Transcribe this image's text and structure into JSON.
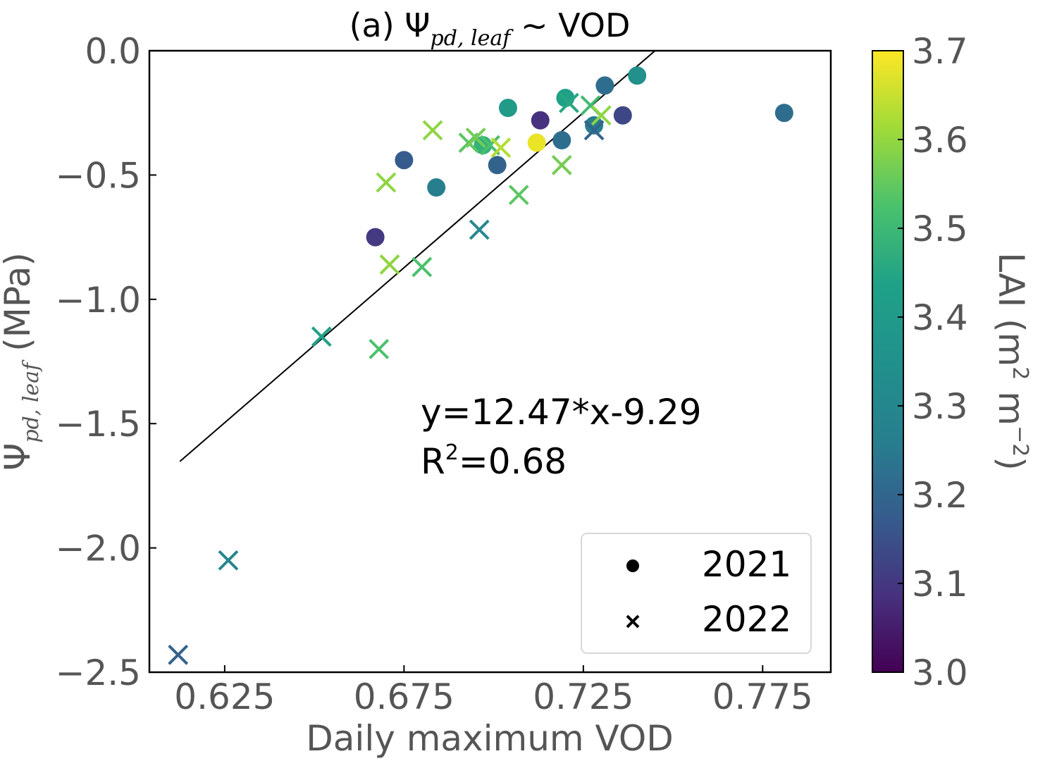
{
  "chart_data": {
    "type": "scatter",
    "title": "(a) Ψ",
    "title_subscript": "pd, leaf",
    "title_suffix": " ~ VOD",
    "xlabel": "Daily maximum VOD",
    "ylabel_prefix": "Ψ",
    "ylabel_subscript": "pd, leaf",
    "ylabel_suffix": " (MPa)",
    "xlim": [
      0.604,
      0.794
    ],
    "ylim": [
      -2.5,
      0.0
    ],
    "x_ticks": [
      0.625,
      0.675,
      0.725,
      0.775
    ],
    "x_tick_labels": [
      "0.625",
      "0.675",
      "0.725",
      "0.775"
    ],
    "y_ticks": [
      0.0,
      -0.5,
      -1.0,
      -1.5,
      -2.0,
      -2.5
    ],
    "y_tick_labels": [
      "0.0",
      "−0.5",
      "−1.0",
      "−1.5",
      "−2.0",
      "−2.5"
    ],
    "grid": false,
    "colorbar": {
      "label": "LAI (m",
      "label_exp1": "2",
      "label_mid": " m",
      "label_exp2": "−2",
      "label_end": ")",
      "colormap": "viridis",
      "range": [
        3.0,
        3.7
      ],
      "ticks": [
        "3.0",
        "3.1",
        "3.2",
        "3.3",
        "3.4",
        "3.5",
        "3.6",
        "3.7"
      ]
    },
    "fit": {
      "slope": 12.47,
      "intercept": -9.29,
      "x_range": [
        0.6125,
        0.745
      ],
      "equation_text": "y=12.47*x-9.29",
      "r2_prefix": "R",
      "r2_exp": "2",
      "r2_suffix": "=0.68"
    },
    "legend": {
      "placement": "lower right",
      "entries": [
        {
          "label": "2021",
          "marker": "circle"
        },
        {
          "label": "2022",
          "marker": "x"
        }
      ]
    },
    "series": [
      {
        "name": "2021",
        "marker": "circle",
        "points": [
          {
            "x": 0.781,
            "y": -0.25,
            "lai": 3.25
          },
          {
            "x": 0.74,
            "y": -0.1,
            "lai": 3.35
          },
          {
            "x": 0.731,
            "y": -0.14,
            "lai": 3.25
          },
          {
            "x": 0.736,
            "y": -0.26,
            "lai": 3.15
          },
          {
            "x": 0.72,
            "y": -0.19,
            "lai": 3.4
          },
          {
            "x": 0.728,
            "y": -0.3,
            "lai": 3.3
          },
          {
            "x": 0.719,
            "y": -0.36,
            "lai": 3.25
          },
          {
            "x": 0.713,
            "y": -0.28,
            "lai": 3.1
          },
          {
            "x": 0.712,
            "y": -0.37,
            "lai": 3.68
          },
          {
            "x": 0.704,
            "y": -0.23,
            "lai": 3.38
          },
          {
            "x": 0.701,
            "y": -0.46,
            "lai": 3.22
          },
          {
            "x": 0.697,
            "y": -0.38,
            "lai": 3.45
          },
          {
            "x": 0.684,
            "y": -0.55,
            "lai": 3.3
          },
          {
            "x": 0.675,
            "y": -0.44,
            "lai": 3.2
          },
          {
            "x": 0.667,
            "y": -0.75,
            "lai": 3.12
          }
        ]
      },
      {
        "name": "2022",
        "marker": "x",
        "points": [
          {
            "x": 0.612,
            "y": -2.43,
            "lai": 3.22
          },
          {
            "x": 0.626,
            "y": -2.05,
            "lai": 3.32
          },
          {
            "x": 0.652,
            "y": -1.15,
            "lai": 3.4
          },
          {
            "x": 0.668,
            "y": -1.2,
            "lai": 3.5
          },
          {
            "x": 0.67,
            "y": -0.53,
            "lai": 3.58
          },
          {
            "x": 0.671,
            "y": -0.86,
            "lai": 3.58
          },
          {
            "x": 0.68,
            "y": -0.87,
            "lai": 3.5
          },
          {
            "x": 0.683,
            "y": -0.32,
            "lai": 3.58
          },
          {
            "x": 0.693,
            "y": -0.37,
            "lai": 3.52
          },
          {
            "x": 0.695,
            "y": -0.35,
            "lai": 3.55
          },
          {
            "x": 0.696,
            "y": -0.72,
            "lai": 3.33
          },
          {
            "x": 0.699,
            "y": -0.38,
            "lai": 3.5
          },
          {
            "x": 0.702,
            "y": -0.39,
            "lai": 3.62
          },
          {
            "x": 0.707,
            "y": -0.58,
            "lai": 3.52
          },
          {
            "x": 0.719,
            "y": -0.46,
            "lai": 3.55
          },
          {
            "x": 0.721,
            "y": -0.21,
            "lai": 3.42
          },
          {
            "x": 0.727,
            "y": -0.22,
            "lai": 3.48
          },
          {
            "x": 0.73,
            "y": -0.26,
            "lai": 3.58
          },
          {
            "x": 0.728,
            "y": -0.32,
            "lai": 3.22
          }
        ]
      }
    ]
  }
}
